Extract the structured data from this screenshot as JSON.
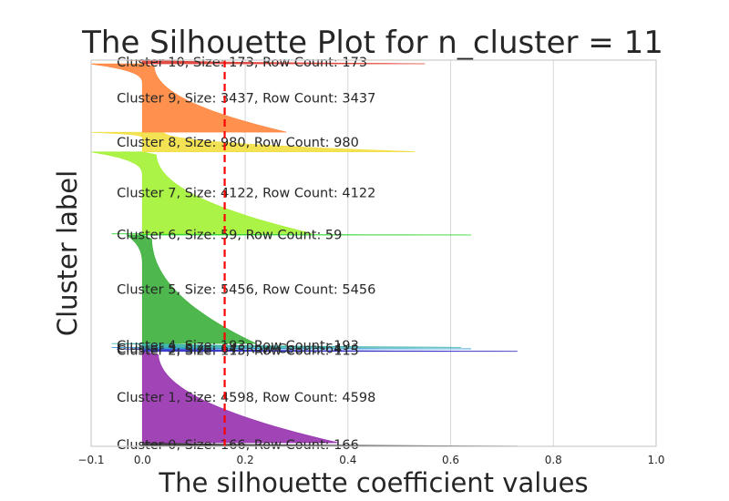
{
  "chart_data": {
    "type": "silhouette",
    "title": "The Silhouette Plot for n_cluster = 11",
    "xlabel": "The silhouette coefficient values",
    "ylabel": "Cluster label",
    "xlim": [
      -0.1,
      1.0
    ],
    "xticks": [
      -0.1,
      0.0,
      0.2,
      0.4,
      0.6,
      0.8,
      1.0
    ],
    "xtick_labels": [
      "−0.1",
      "0.0",
      "0.2",
      "0.4",
      "0.6",
      "0.8",
      "1.0"
    ],
    "grid": true,
    "average_silhouette": 0.16,
    "average_line_color": "#ff0000",
    "clusters": [
      {
        "id": 0,
        "size": 166,
        "row_count": 166,
        "label": "Cluster 0, Size: 166, Row Count: 166",
        "color": "#3a3a3a",
        "max": 0.73,
        "min": 0.0
      },
      {
        "id": 1,
        "size": 4598,
        "row_count": 4598,
        "label": "Cluster 1, Size: 4598, Row Count: 4598",
        "color": "#9b3ab2",
        "max": 0.38,
        "min": 0.0
      },
      {
        "id": 2,
        "size": 115,
        "row_count": 115,
        "label": "Cluster 2, Size: 115, Row Count: 115",
        "color": "#3737c8",
        "max": 0.73,
        "min": -0.05
      },
      {
        "id": 3,
        "size": 64,
        "row_count": 64,
        "label": "Cluster 3, Size: 64, Row Count: 64",
        "color": "#2f97d8",
        "max": 0.64,
        "min": -0.06
      },
      {
        "id": 4,
        "size": 193,
        "row_count": 193,
        "label": "Cluster 4, Size: 193, Row Count: 193",
        "color": "#3ab4a8",
        "max": 0.62,
        "min": -0.06
      },
      {
        "id": 5,
        "size": 5456,
        "row_count": 5456,
        "label": "Cluster 5, Size: 5456, Row Count: 5456",
        "color": "#45b445",
        "max": 0.22,
        "min": -0.03
      },
      {
        "id": 6,
        "size": 59,
        "row_count": 59,
        "label": "Cluster 6, Size: 59, Row Count: 59",
        "color": "#2ed62e",
        "max": 0.64,
        "min": -0.06
      },
      {
        "id": 7,
        "size": 4122,
        "row_count": 4122,
        "label": "Cluster 7, Size: 4122, Row Count: 4122",
        "color": "#a6f23c",
        "max": 0.33,
        "min": -0.1
      },
      {
        "id": 8,
        "size": 980,
        "row_count": 980,
        "label": "Cluster 8, Size: 980, Row Count: 980",
        "color": "#f2e04a",
        "max": 0.53,
        "min": -0.1
      },
      {
        "id": 9,
        "size": 3437,
        "row_count": 3437,
        "label": "Cluster 9, Size: 3437, Row Count: 3437",
        "color": "#ff8a45",
        "max": 0.28,
        "min": -0.1
      },
      {
        "id": 10,
        "size": 173,
        "row_count": 173,
        "label": "Cluster 10, Size: 173, Row Count: 173",
        "color": "#e0433a",
        "max": 0.55,
        "min": -0.03
      }
    ]
  }
}
